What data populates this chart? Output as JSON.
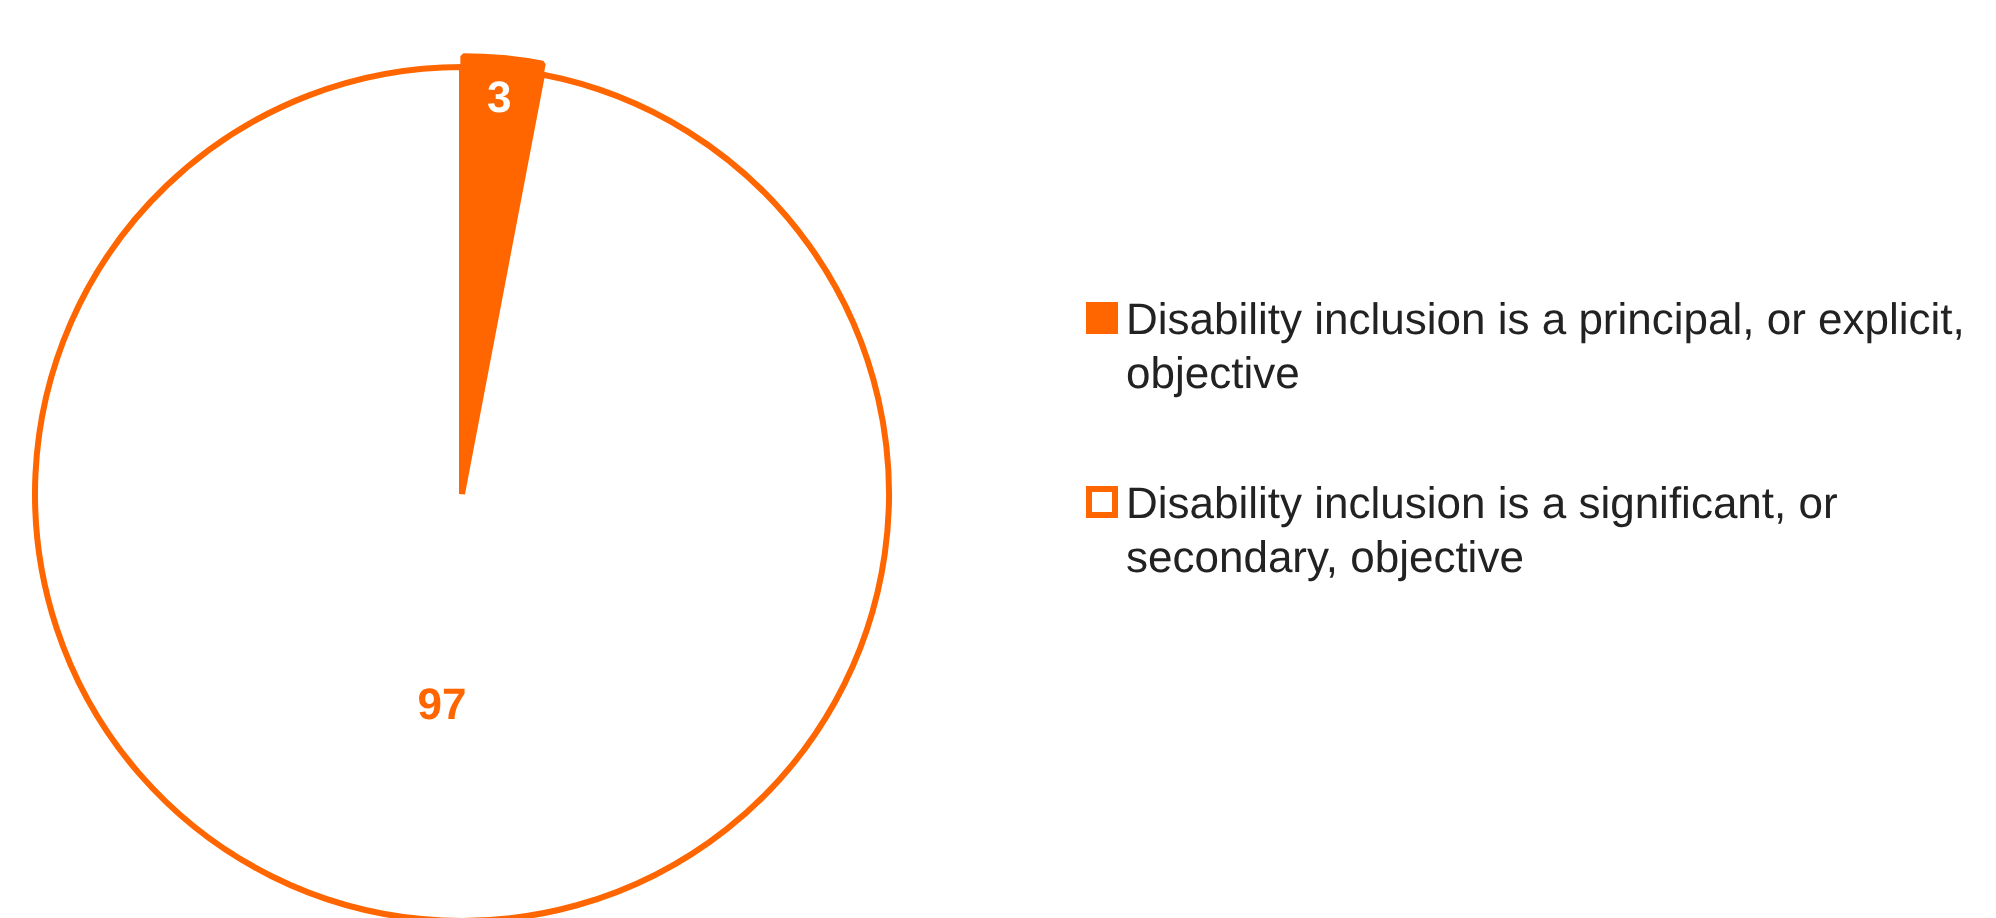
{
  "chart_data": {
    "type": "pie",
    "categories": [
      "Disability inclusion is a principal, or explicit, objective",
      "Disability inclusion is a significant, or secondary, objective"
    ],
    "values": [
      3,
      97
    ],
    "colors": [
      "#ff6600",
      "#ffffff"
    ],
    "data_labels": true,
    "legend": "right"
  }
}
